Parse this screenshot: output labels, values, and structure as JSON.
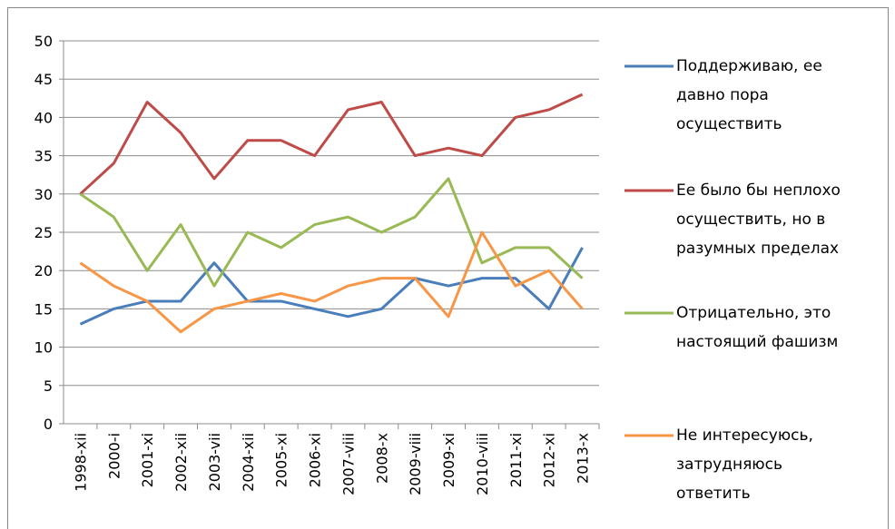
{
  "chart_data": {
    "type": "line",
    "categories": [
      "1998-xii",
      "2000-i",
      "2001-xi",
      "2002-xii",
      "2003-vii",
      "2004-xii",
      "2005-xi",
      "2006-xi",
      "2007-viii",
      "2008-x",
      "2009-viii",
      "2009-xi",
      "2010-viii",
      "2011-xi",
      "2012-xi",
      "2013-x"
    ],
    "series": [
      {
        "name": "Поддерживаю, ее\nдавно пора\nосуществить",
        "color": "#4a7ebb",
        "values": [
          13,
          15,
          16,
          16,
          21,
          16,
          16,
          15,
          14,
          15,
          19,
          18,
          19,
          19,
          15,
          23
        ]
      },
      {
        "name": "Ее было бы неплохо\nосуществить, но в\nразумных пределах",
        "color": "#be4b48",
        "values": [
          30,
          34,
          42,
          38,
          32,
          37,
          37,
          35,
          41,
          42,
          35,
          36,
          35,
          40,
          41,
          43
        ]
      },
      {
        "name": "Отрицательно, это\nнастоящий фашизм",
        "color": "#98b954",
        "values": [
          30,
          27,
          20,
          26,
          18,
          25,
          23,
          26,
          27,
          25,
          27,
          32,
          21,
          23,
          23,
          19
        ]
      },
      {
        "name": "Не интересуюсь,\nзатрудняюсь\nответить",
        "color": "#f79646",
        "values": [
          21,
          18,
          16,
          12,
          15,
          16,
          17,
          16,
          18,
          19,
          19,
          14,
          25,
          18,
          20,
          15
        ]
      }
    ],
    "ylim": [
      0,
      50
    ],
    "yticks": [
      0,
      5,
      10,
      15,
      20,
      25,
      30,
      35,
      40,
      45,
      50
    ],
    "grid": true,
    "legend": "right"
  }
}
